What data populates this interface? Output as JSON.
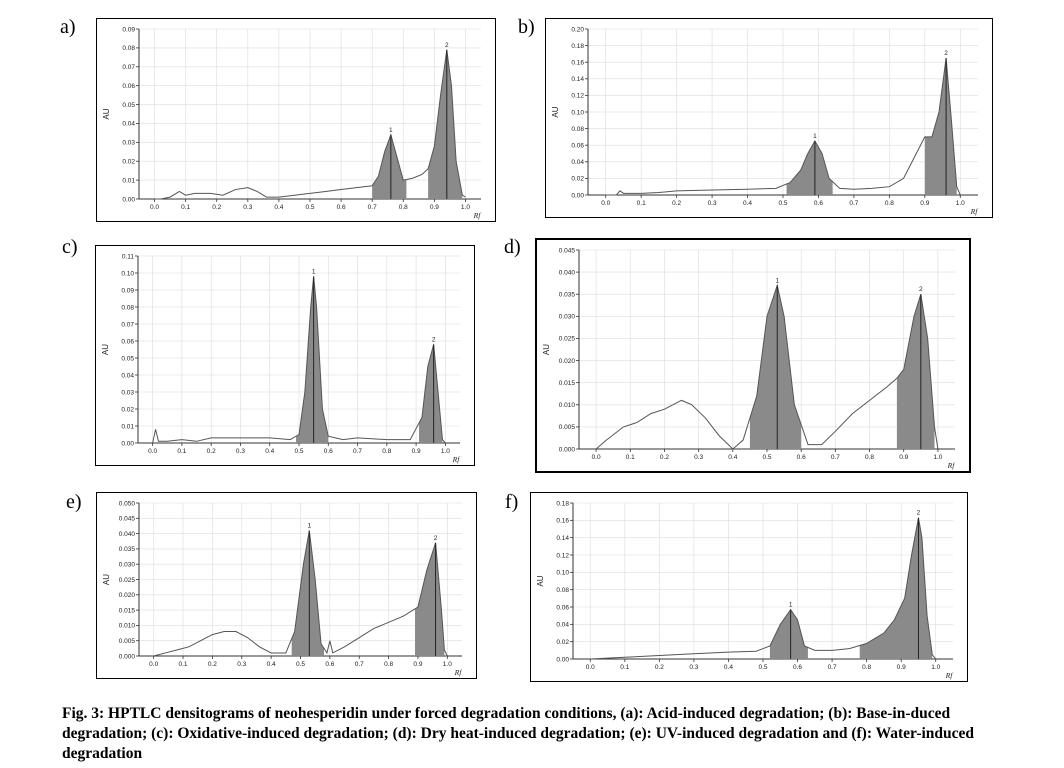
{
  "figure": {
    "caption": "Fig. 3: HPTLC densitograms of neohesperidin under forced degradation conditions, (a): Acid-induced degradation; (b): Base-in-duced degradation; (c): Oxidative-induced degradation; (d): Dry heat-induced degradation; (e): UV-induced degradation and (f): Water-induced degradation",
    "line_color": "#555555",
    "peak_fill": "#8a8a8a",
    "grid_color": "#dcdcdc"
  },
  "chart_data": [
    {
      "panel": "a)",
      "type": "line",
      "ylabel": "AU",
      "xlabel": "Rf",
      "xlim": [
        -0.05,
        1.05
      ],
      "ylim": [
        0,
        0.09
      ],
      "yticks": [
        0.0,
        0.01,
        0.02,
        0.03,
        0.04,
        0.05,
        0.06,
        0.07,
        0.08,
        0.09
      ],
      "ytick_labels": [
        "0.00",
        "0.01",
        "0.02",
        "0.03",
        "0.04",
        "0.05",
        "0.06",
        "0.07",
        "0.08",
        "0.09"
      ],
      "xticks": [
        0.0,
        0.1,
        0.2,
        0.3,
        0.4,
        0.5,
        0.6,
        0.7,
        0.8,
        0.9,
        1.0
      ],
      "xtick_labels": [
        "0.0",
        "0.1",
        "0.2",
        "0.3",
        "0.4",
        "0.5",
        "0.6",
        "0.7",
        "0.8",
        "0.9",
        "1.0"
      ],
      "grid": true,
      "peaks": [
        {
          "label": "1",
          "rf": 0.76,
          "height": 0.034,
          "range": [
            0.7,
            0.81
          ]
        },
        {
          "label": "2",
          "rf": 0.94,
          "height": 0.079,
          "range": [
            0.88,
            0.99
          ]
        }
      ],
      "trace": [
        [
          0.0,
          0.0
        ],
        [
          0.02,
          0.0
        ],
        [
          0.05,
          0.001
        ],
        [
          0.08,
          0.004
        ],
        [
          0.1,
          0.002
        ],
        [
          0.13,
          0.003
        ],
        [
          0.18,
          0.003
        ],
        [
          0.22,
          0.002
        ],
        [
          0.26,
          0.005
        ],
        [
          0.3,
          0.006
        ],
        [
          0.33,
          0.004
        ],
        [
          0.36,
          0.001
        ],
        [
          0.4,
          0.001
        ],
        [
          0.45,
          0.002
        ],
        [
          0.5,
          0.003
        ],
        [
          0.55,
          0.004
        ],
        [
          0.6,
          0.005
        ],
        [
          0.65,
          0.006
        ],
        [
          0.7,
          0.007
        ],
        [
          0.72,
          0.012
        ],
        [
          0.74,
          0.025
        ],
        [
          0.76,
          0.034
        ],
        [
          0.78,
          0.022
        ],
        [
          0.8,
          0.01
        ],
        [
          0.83,
          0.011
        ],
        [
          0.86,
          0.013
        ],
        [
          0.88,
          0.016
        ],
        [
          0.9,
          0.028
        ],
        [
          0.92,
          0.055
        ],
        [
          0.94,
          0.079
        ],
        [
          0.955,
          0.06
        ],
        [
          0.97,
          0.02
        ],
        [
          0.99,
          0.002
        ],
        [
          1.0,
          0.001
        ]
      ]
    },
    {
      "panel": "b)",
      "type": "line",
      "ylabel": "AU",
      "xlabel": "Rf",
      "xlim": [
        -0.05,
        1.05
      ],
      "ylim": [
        0,
        0.2
      ],
      "yticks": [
        0.0,
        0.02,
        0.04,
        0.06,
        0.08,
        0.1,
        0.12,
        0.14,
        0.16,
        0.18,
        0.2
      ],
      "ytick_labels": [
        "0.00",
        "0.02",
        "0.04",
        "0.06",
        "0.08",
        "0.10",
        "0.12",
        "0.14",
        "0.16",
        "0.18",
        "0.20"
      ],
      "xticks": [
        0.0,
        0.1,
        0.2,
        0.3,
        0.4,
        0.5,
        0.6,
        0.7,
        0.8,
        0.9,
        1.0
      ],
      "xtick_labels": [
        "0.0",
        "0.1",
        "0.2",
        "0.3",
        "0.4",
        "0.5",
        "0.6",
        "0.7",
        "0.8",
        "0.9",
        "1.0"
      ],
      "grid": true,
      "peaks": [
        {
          "label": "1",
          "rf": 0.59,
          "height": 0.065,
          "range": [
            0.51,
            0.64
          ]
        },
        {
          "label": "2",
          "rf": 0.96,
          "height": 0.165,
          "range": [
            0.9,
            0.99
          ]
        }
      ],
      "trace": [
        [
          0.0,
          0.0
        ],
        [
          0.03,
          0.0
        ],
        [
          0.04,
          0.005
        ],
        [
          0.05,
          0.002
        ],
        [
          0.1,
          0.002
        ],
        [
          0.15,
          0.003
        ],
        [
          0.2,
          0.005
        ],
        [
          0.3,
          0.006
        ],
        [
          0.4,
          0.007
        ],
        [
          0.48,
          0.008
        ],
        [
          0.52,
          0.015
        ],
        [
          0.55,
          0.03
        ],
        [
          0.57,
          0.05
        ],
        [
          0.59,
          0.065
        ],
        [
          0.61,
          0.05
        ],
        [
          0.63,
          0.02
        ],
        [
          0.66,
          0.008
        ],
        [
          0.7,
          0.007
        ],
        [
          0.75,
          0.008
        ],
        [
          0.8,
          0.01
        ],
        [
          0.84,
          0.02
        ],
        [
          0.87,
          0.045
        ],
        [
          0.9,
          0.07
        ],
        [
          0.92,
          0.07
        ],
        [
          0.94,
          0.1
        ],
        [
          0.96,
          0.165
        ],
        [
          0.975,
          0.09
        ],
        [
          0.99,
          0.01
        ],
        [
          1.0,
          0.0
        ]
      ]
    },
    {
      "panel": "c)",
      "type": "line",
      "ylabel": "AU",
      "xlabel": "Rf",
      "xlim": [
        -0.05,
        1.05
      ],
      "ylim": [
        0,
        0.11
      ],
      "yticks": [
        0.0,
        0.01,
        0.02,
        0.03,
        0.04,
        0.05,
        0.06,
        0.07,
        0.08,
        0.09,
        0.1,
        0.11
      ],
      "ytick_labels": [
        "0.00",
        "0.01",
        "0.02",
        "0.03",
        "0.04",
        "0.05",
        "0.06",
        "0.07",
        "0.08",
        "0.09",
        "0.10",
        "0.11"
      ],
      "xticks": [
        0.0,
        0.1,
        0.2,
        0.3,
        0.4,
        0.5,
        0.6,
        0.7,
        0.8,
        0.9,
        1.0
      ],
      "xtick_labels": [
        "0.0",
        "0.1",
        "0.2",
        "0.3",
        "0.4",
        "0.5",
        "0.6",
        "0.7",
        "0.8",
        "0.9",
        "1.0"
      ],
      "grid": true,
      "peaks": [
        {
          "label": "1",
          "rf": 0.55,
          "height": 0.098,
          "range": [
            0.49,
            0.6
          ]
        },
        {
          "label": "2",
          "rf": 0.96,
          "height": 0.058,
          "range": [
            0.91,
            0.99
          ]
        }
      ],
      "trace": [
        [
          0.0,
          0.0
        ],
        [
          0.01,
          0.008
        ],
        [
          0.02,
          0.001
        ],
        [
          0.05,
          0.001
        ],
        [
          0.1,
          0.002
        ],
        [
          0.15,
          0.001
        ],
        [
          0.2,
          0.003
        ],
        [
          0.3,
          0.003
        ],
        [
          0.4,
          0.003
        ],
        [
          0.47,
          0.002
        ],
        [
          0.5,
          0.005
        ],
        [
          0.52,
          0.03
        ],
        [
          0.54,
          0.08
        ],
        [
          0.55,
          0.098
        ],
        [
          0.56,
          0.08
        ],
        [
          0.58,
          0.02
        ],
        [
          0.6,
          0.004
        ],
        [
          0.65,
          0.002
        ],
        [
          0.7,
          0.003
        ],
        [
          0.8,
          0.002
        ],
        [
          0.88,
          0.002
        ],
        [
          0.92,
          0.015
        ],
        [
          0.94,
          0.045
        ],
        [
          0.96,
          0.058
        ],
        [
          0.975,
          0.03
        ],
        [
          0.99,
          0.002
        ],
        [
          1.0,
          0.0
        ]
      ]
    },
    {
      "panel": "d)",
      "type": "line",
      "ylabel": "AU",
      "xlabel": "Rf",
      "xlim": [
        -0.05,
        1.05
      ],
      "ylim": [
        0,
        0.045
      ],
      "yticks": [
        0.0,
        0.005,
        0.01,
        0.015,
        0.02,
        0.025,
        0.03,
        0.035,
        0.04,
        0.045
      ],
      "ytick_labels": [
        "0.000",
        "0.005",
        "0.010",
        "0.015",
        "0.020",
        "0.025",
        "0.030",
        "0.035",
        "0.040",
        "0.045"
      ],
      "xticks": [
        0.0,
        0.1,
        0.2,
        0.3,
        0.4,
        0.5,
        0.6,
        0.7,
        0.8,
        0.9,
        1.0
      ],
      "xtick_labels": [
        "0.0",
        "0.1",
        "0.2",
        "0.3",
        "0.4",
        "0.5",
        "0.6",
        "0.7",
        "0.8",
        "0.9",
        "1.0"
      ],
      "grid": true,
      "peaks": [
        {
          "label": "1",
          "rf": 0.53,
          "height": 0.037,
          "range": [
            0.45,
            0.6
          ]
        },
        {
          "label": "2",
          "rf": 0.95,
          "height": 0.035,
          "range": [
            0.88,
            0.99
          ]
        }
      ],
      "trace": [
        [
          0.0,
          0.0
        ],
        [
          0.03,
          0.002
        ],
        [
          0.08,
          0.005
        ],
        [
          0.12,
          0.006
        ],
        [
          0.16,
          0.008
        ],
        [
          0.2,
          0.009
        ],
        [
          0.25,
          0.011
        ],
        [
          0.28,
          0.01
        ],
        [
          0.32,
          0.007
        ],
        [
          0.36,
          0.003
        ],
        [
          0.4,
          0.0
        ],
        [
          0.43,
          0.002
        ],
        [
          0.47,
          0.012
        ],
        [
          0.5,
          0.03
        ],
        [
          0.53,
          0.037
        ],
        [
          0.55,
          0.03
        ],
        [
          0.58,
          0.01
        ],
        [
          0.62,
          0.001
        ],
        [
          0.66,
          0.001
        ],
        [
          0.7,
          0.004
        ],
        [
          0.75,
          0.008
        ],
        [
          0.8,
          0.011
        ],
        [
          0.85,
          0.014
        ],
        [
          0.88,
          0.016
        ],
        [
          0.9,
          0.018
        ],
        [
          0.93,
          0.03
        ],
        [
          0.95,
          0.035
        ],
        [
          0.97,
          0.025
        ],
        [
          0.99,
          0.005
        ],
        [
          1.0,
          0.0
        ]
      ]
    },
    {
      "panel": "e)",
      "type": "line",
      "ylabel": "AU",
      "xlabel": "Rf",
      "xlim": [
        -0.05,
        1.05
      ],
      "ylim": [
        0,
        0.05
      ],
      "yticks": [
        0.0,
        0.005,
        0.01,
        0.015,
        0.02,
        0.025,
        0.03,
        0.035,
        0.04,
        0.045,
        0.05
      ],
      "ytick_labels": [
        "0.000",
        "0.005",
        "0.010",
        "0.015",
        "0.020",
        "0.025",
        "0.030",
        "0.035",
        "0.040",
        "0.045",
        "0.050"
      ],
      "xticks": [
        0.0,
        0.1,
        0.2,
        0.3,
        0.4,
        0.5,
        0.6,
        0.7,
        0.8,
        0.9,
        1.0
      ],
      "xtick_labels": [
        "0.0",
        "0.1",
        "0.2",
        "0.3",
        "0.4",
        "0.5",
        "0.6",
        "0.7",
        "0.8",
        "0.9",
        "1.0"
      ],
      "grid": true,
      "peaks": [
        {
          "label": "1",
          "rf": 0.53,
          "height": 0.041,
          "range": [
            0.47,
            0.58
          ]
        },
        {
          "label": "2",
          "rf": 0.96,
          "height": 0.037,
          "range": [
            0.89,
            0.99
          ]
        }
      ],
      "trace": [
        [
          0.0,
          0.0
        ],
        [
          0.04,
          0.001
        ],
        [
          0.08,
          0.002
        ],
        [
          0.12,
          0.003
        ],
        [
          0.16,
          0.005
        ],
        [
          0.2,
          0.007
        ],
        [
          0.24,
          0.008
        ],
        [
          0.28,
          0.008
        ],
        [
          0.32,
          0.006
        ],
        [
          0.36,
          0.003
        ],
        [
          0.4,
          0.001
        ],
        [
          0.45,
          0.001
        ],
        [
          0.48,
          0.008
        ],
        [
          0.51,
          0.03
        ],
        [
          0.53,
          0.041
        ],
        [
          0.55,
          0.025
        ],
        [
          0.57,
          0.004
        ],
        [
          0.59,
          0.001
        ],
        [
          0.6,
          0.005
        ],
        [
          0.61,
          0.001
        ],
        [
          0.65,
          0.003
        ],
        [
          0.7,
          0.006
        ],
        [
          0.75,
          0.009
        ],
        [
          0.8,
          0.011
        ],
        [
          0.85,
          0.013
        ],
        [
          0.9,
          0.016
        ],
        [
          0.93,
          0.028
        ],
        [
          0.96,
          0.037
        ],
        [
          0.98,
          0.015
        ],
        [
          0.99,
          0.002
        ],
        [
          1.0,
          0.0
        ]
      ]
    },
    {
      "panel": "f)",
      "type": "line",
      "ylabel": "AU",
      "xlabel": "Rf",
      "xlim": [
        -0.05,
        1.05
      ],
      "ylim": [
        0,
        0.18
      ],
      "yticks": [
        0.0,
        0.02,
        0.04,
        0.06,
        0.08,
        0.1,
        0.12,
        0.14,
        0.16,
        0.18
      ],
      "ytick_labels": [
        "0.00",
        "0.02",
        "0.04",
        "0.06",
        "0.08",
        "0.10",
        "0.12",
        "0.14",
        "0.16",
        "0.18"
      ],
      "xticks": [
        0.0,
        0.1,
        0.2,
        0.3,
        0.4,
        0.5,
        0.6,
        0.7,
        0.8,
        0.9,
        1.0
      ],
      "xtick_labels": [
        "0.0",
        "0.1",
        "0.2",
        "0.3",
        "0.4",
        "0.5",
        "0.6",
        "0.7",
        "0.8",
        "0.9",
        "1.0"
      ],
      "grid": true,
      "peaks": [
        {
          "label": "1",
          "rf": 0.58,
          "height": 0.057,
          "range": [
            0.52,
            0.63
          ]
        },
        {
          "label": "2",
          "rf": 0.95,
          "height": 0.163,
          "range": [
            0.78,
            0.99
          ]
        }
      ],
      "trace": [
        [
          0.0,
          0.0
        ],
        [
          0.05,
          0.001
        ],
        [
          0.1,
          0.002
        ],
        [
          0.2,
          0.004
        ],
        [
          0.3,
          0.006
        ],
        [
          0.4,
          0.008
        ],
        [
          0.48,
          0.009
        ],
        [
          0.52,
          0.015
        ],
        [
          0.55,
          0.04
        ],
        [
          0.58,
          0.057
        ],
        [
          0.6,
          0.045
        ],
        [
          0.62,
          0.015
        ],
        [
          0.65,
          0.01
        ],
        [
          0.7,
          0.01
        ],
        [
          0.75,
          0.012
        ],
        [
          0.8,
          0.018
        ],
        [
          0.85,
          0.03
        ],
        [
          0.88,
          0.045
        ],
        [
          0.91,
          0.07
        ],
        [
          0.93,
          0.12
        ],
        [
          0.95,
          0.163
        ],
        [
          0.96,
          0.14
        ],
        [
          0.975,
          0.05
        ],
        [
          0.99,
          0.005
        ],
        [
          1.0,
          0.0
        ]
      ]
    }
  ]
}
